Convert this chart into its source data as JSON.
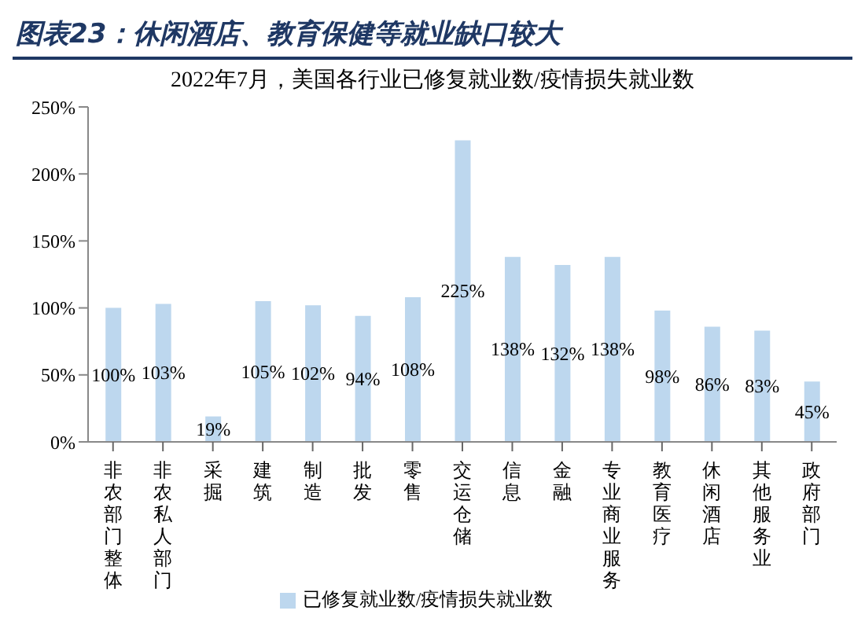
{
  "chart_data": {
    "type": "bar",
    "title": "图表23：休闲酒店、教育保健等就业缺口较大",
    "subtitle": "2022年7月，美国各行业已修复就业数/疫情损失就业数",
    "categories": [
      "非农部门整体",
      "非农私人部门",
      "采掘",
      "建筑",
      "制造",
      "批发",
      "零售",
      "交运仓储",
      "信息",
      "金融",
      "专业商业服务",
      "教育医疗",
      "休闲酒店",
      "其他服务业",
      "政府部门"
    ],
    "series": [
      {
        "name": "已修复就业数/疫情损失就业数",
        "color": "#bdd7ee",
        "values": [
          100,
          103,
          19,
          105,
          102,
          94,
          108,
          225,
          138,
          132,
          138,
          98,
          86,
          83,
          45
        ],
        "value_labels": [
          "100%",
          "103%",
          "19%",
          "105%",
          "102%",
          "94%",
          "108%",
          "225%",
          "138%",
          "132%",
          "138%",
          "98%",
          "86%",
          "83%",
          "45%"
        ]
      }
    ],
    "ylim": [
      0,
      250
    ],
    "yticks": [
      {
        "value": 0,
        "label": "0%"
      },
      {
        "value": 50,
        "label": "50%"
      },
      {
        "value": 100,
        "label": "100%"
      },
      {
        "value": 150,
        "label": "150%"
      },
      {
        "value": 200,
        "label": "200%"
      },
      {
        "value": 250,
        "label": "250%"
      }
    ],
    "grid": false,
    "legend": "bottom"
  }
}
